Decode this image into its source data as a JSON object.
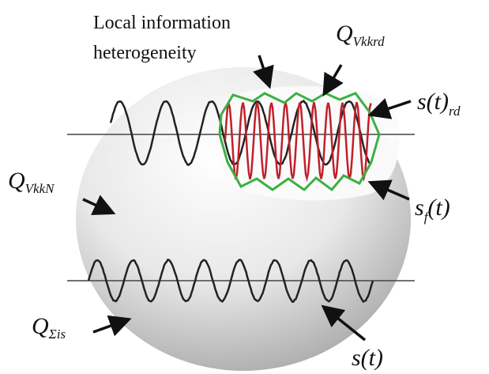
{
  "labels": {
    "heading": [
      "Local information",
      "heterogeneity"
    ],
    "q_rd": {
      "main": "Q",
      "sub": "Vkkrd"
    },
    "s_rd": {
      "main": "s(t)",
      "sub": "rd"
    },
    "q_n": {
      "main": "Q",
      "sub": "VkkN"
    },
    "s_f": {
      "main": "s",
      "sub": "f",
      "tail": "(t)"
    },
    "q_sigma": {
      "main": "Q",
      "sub": "Σis"
    },
    "s": {
      "main": "s(t)"
    }
  }
}
